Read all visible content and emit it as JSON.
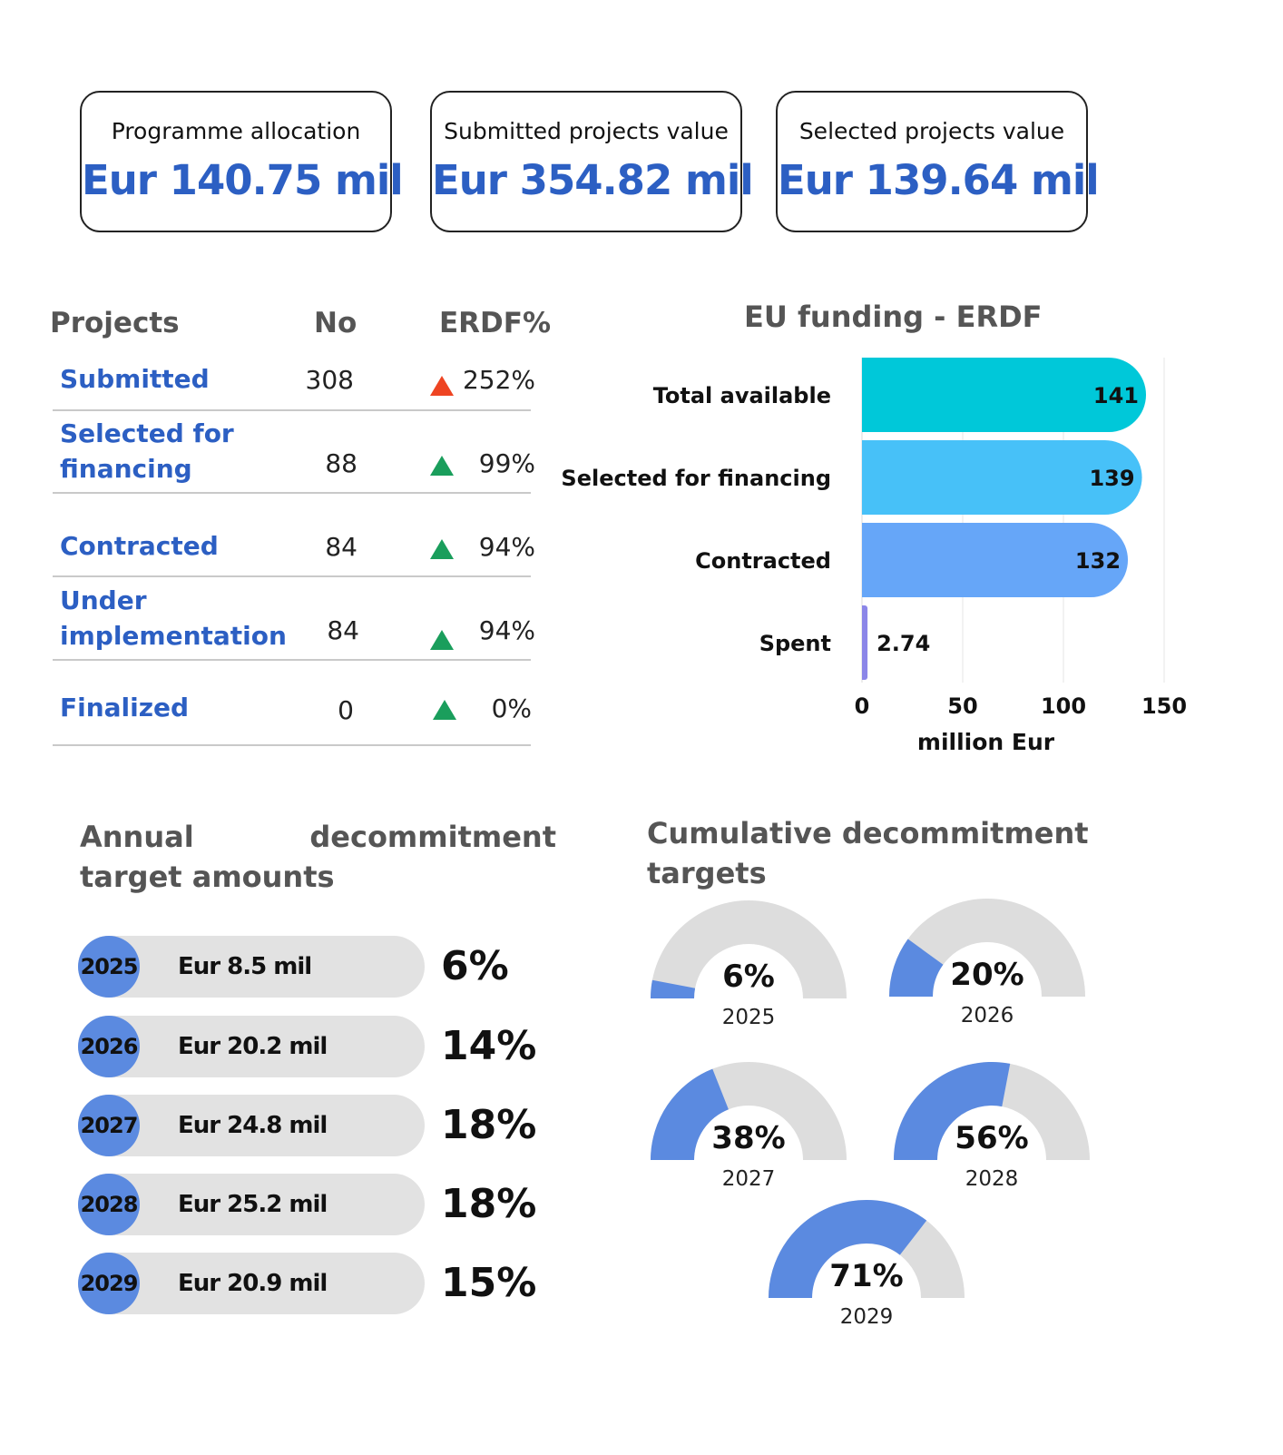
{
  "kpis": [
    {
      "label": "Programme allocation",
      "value": "Eur 140.75 mil"
    },
    {
      "label": "Submitted projects value",
      "value": "Eur 354.82 mil"
    },
    {
      "label": "Selected projects value",
      "value": "Eur 139.64 mil"
    }
  ],
  "projects_table": {
    "headers": {
      "name": "Projects",
      "no": "No",
      "erdf": "ERDF%"
    },
    "rows": [
      {
        "name": "Submitted",
        "no": "308",
        "erdf": "252%",
        "arrow_color": "#ee4422"
      },
      {
        "name": "Selected for financing",
        "no": "88",
        "erdf": "99%",
        "arrow_color": "#1a9e5c"
      },
      {
        "name": "Contracted",
        "no": "84",
        "erdf": "94%",
        "arrow_color": "#1a9e5c"
      },
      {
        "name": "Under implementation",
        "no": "84",
        "erdf": "94%",
        "arrow_color": "#1a9e5c"
      },
      {
        "name": "Finalized",
        "no": "0",
        "erdf": "0%",
        "arrow_color": "#1a9e5c"
      }
    ]
  },
  "annual": {
    "title": "Annual decommitment target amounts",
    "items": [
      {
        "year": "2025",
        "amount": "Eur 8.5 mil",
        "pct": "6%"
      },
      {
        "year": "2026",
        "amount": "Eur 20.2 mil",
        "pct": "14%"
      },
      {
        "year": "2027",
        "amount": "Eur 24.8 mil",
        "pct": "18%"
      },
      {
        "year": "2028",
        "amount": "Eur 25.2 mil",
        "pct": "18%"
      },
      {
        "year": "2029",
        "amount": "Eur 20.9 mil",
        "pct": "15%"
      }
    ]
  },
  "cumulative": {
    "title": "Cumulative decommitment targets"
  },
  "chart_data": [
    {
      "type": "bar",
      "orientation": "horizontal",
      "title": "EU funding - ERDF",
      "xlabel": "million Eur",
      "ylabel": "",
      "categories": [
        "Total available",
        "Selected for financing",
        "Contracted",
        "Spent"
      ],
      "values": [
        141,
        139,
        132,
        2.74
      ],
      "data_labels": [
        "141",
        "139",
        "132",
        "2.74"
      ],
      "colors": [
        "#00c8d9",
        "#47c1f8",
        "#66a6f8",
        "#8b86e8"
      ],
      "xlim": [
        0,
        150
      ],
      "xticks": [
        "0",
        "50",
        "100",
        "150"
      ],
      "grid": true
    },
    {
      "type": "gauge",
      "categories": [
        "2025",
        "2026",
        "2027",
        "2028",
        "2029"
      ],
      "values": [
        6,
        20,
        38,
        56,
        71
      ],
      "labels": [
        "6%",
        "20%",
        "38%",
        "56%",
        "71%"
      ],
      "fill_color": "#5b8ae0",
      "track_color": "#dddddd"
    }
  ]
}
